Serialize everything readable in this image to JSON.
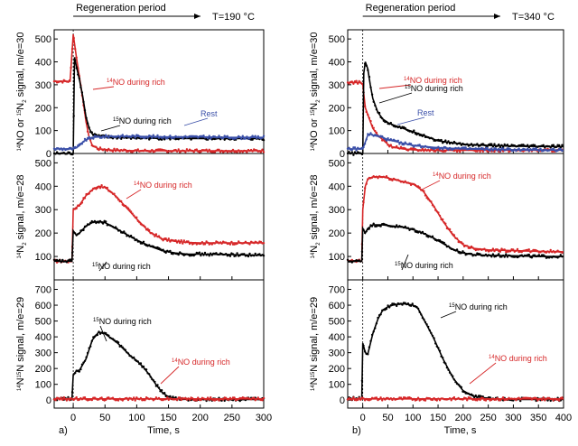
{
  "chart_data": [
    {
      "type": "line",
      "panel_label": "a)",
      "header": "Regeneration period",
      "temperature": "T=190 °C",
      "xlabel": "Time, s",
      "xlim": [
        -30,
        300
      ],
      "xticks": [
        0,
        50,
        100,
        150,
        200,
        250,
        300
      ],
      "subplots": [
        {
          "ylabel": "14NO or 15N2 signal, m/e=30",
          "ylim": [
            0,
            540
          ],
          "yticks": [
            0,
            100,
            200,
            300,
            400,
            500
          ],
          "series": [
            {
              "name": "14NO during rich",
              "color": "#d62728",
              "x": [
                -30,
                -5,
                0,
                2,
                5,
                10,
                15,
                20,
                25,
                30,
                40,
                60,
                100,
                150,
                200,
                250,
                300
              ],
              "y": [
                315,
                315,
                520,
                480,
                420,
                330,
                240,
                140,
                70,
                35,
                20,
                15,
                12,
                12,
                12,
                12,
                12
              ]
            },
            {
              "name": "15NO during rich",
              "color": "#000000",
              "x": [
                -30,
                0,
                2,
                5,
                10,
                15,
                20,
                25,
                30,
                40,
                60,
                100,
                150,
                200,
                250,
                300
              ],
              "y": [
                0,
                0,
                420,
                380,
                320,
                250,
                160,
                110,
                85,
                75,
                70,
                68,
                66,
                65,
                65,
                65
              ]
            },
            {
              "name": "Rest",
              "color": "#3a4fa8",
              "x": [
                -30,
                0,
                5,
                10,
                15,
                20,
                25,
                30,
                40,
                60,
                100,
                150,
                200,
                250,
                300
              ],
              "y": [
                20,
                20,
                25,
                35,
                50,
                60,
                65,
                70,
                72,
                75,
                75,
                72,
                72,
                70,
                70
              ]
            }
          ],
          "annotations": [
            {
              "text": "14NO during rich",
              "color": "#d62728"
            },
            {
              "text": "15NO during rich",
              "color": "#000000"
            },
            {
              "text": "Rest",
              "color": "#3a4fa8"
            }
          ]
        },
        {
          "ylabel": "14N2 signal, m/e=28",
          "ylim": [
            0,
            540
          ],
          "yticks": [
            100,
            200,
            300,
            400,
            500
          ],
          "series": [
            {
              "name": "14NO during rich",
              "color": "#d62728",
              "x": [
                -30,
                -2,
                0,
                5,
                10,
                20,
                30,
                40,
                50,
                60,
                70,
                80,
                100,
                120,
                140,
                160,
                180,
                200,
                250,
                300
              ],
              "y": [
                80,
                80,
                300,
                310,
                320,
                360,
                385,
                400,
                395,
                375,
                350,
                320,
                260,
                205,
                175,
                165,
                160,
                158,
                158,
                158
              ]
            },
            {
              "name": "15NO during rich",
              "color": "#000000",
              "x": [
                -30,
                -2,
                0,
                5,
                10,
                20,
                30,
                40,
                50,
                60,
                80,
                100,
                120,
                140,
                160,
                180,
                200,
                250,
                300
              ],
              "y": [
                80,
                80,
                210,
                190,
                200,
                230,
                245,
                250,
                245,
                230,
                200,
                170,
                145,
                125,
                115,
                110,
                110,
                108,
                105
              ]
            }
          ],
          "annotations": [
            {
              "text": "14NO during rich",
              "color": "#d62728"
            },
            {
              "text": "15NO during rich",
              "color": "#000000"
            }
          ]
        },
        {
          "ylabel": "14N15N signal, m/e=29",
          "ylim": [
            -50,
            760
          ],
          "yticks": [
            0,
            100,
            200,
            300,
            400,
            500,
            600,
            700
          ],
          "series": [
            {
              "name": "15NO during rich",
              "color": "#000000",
              "x": [
                -30,
                -2,
                0,
                5,
                10,
                20,
                30,
                40,
                50,
                60,
                70,
                80,
                90,
                100,
                110,
                120,
                130,
                140,
                150,
                160,
                180,
                200,
                250,
                300
              ],
              "y": [
                10,
                10,
                160,
                185,
                190,
                260,
                380,
                430,
                420,
                390,
                360,
                320,
                280,
                250,
                210,
                160,
                100,
                50,
                20,
                10,
                5,
                5,
                5,
                5
              ]
            },
            {
              "name": "14NO during rich",
              "color": "#d62728",
              "x": [
                -30,
                0,
                50,
                100,
                150,
                200,
                250,
                300
              ],
              "y": [
                8,
                8,
                8,
                8,
                8,
                8,
                8,
                8
              ]
            }
          ],
          "annotations": [
            {
              "text": "15NO during rich",
              "color": "#000000"
            },
            {
              "text": "14NO during rich",
              "color": "#d62728"
            }
          ]
        }
      ]
    },
    {
      "type": "line",
      "panel_label": "b)",
      "header": "Regeneration period",
      "temperature": "T=340 °C",
      "xlabel": "Time, s",
      "xlim": [
        -30,
        400
      ],
      "xticks": [
        0,
        50,
        100,
        150,
        200,
        250,
        300,
        350,
        400
      ],
      "subplots": [
        {
          "ylabel": "14NO or 15N2 signal, m/e=30",
          "ylim": [
            0,
            540
          ],
          "yticks": [
            0,
            100,
            200,
            300,
            400,
            500
          ],
          "series": [
            {
              "name": "14NO during rich",
              "color": "#d62728",
              "x": [
                -30,
                -5,
                0,
                2,
                5,
                10,
                15,
                20,
                30,
                40,
                50,
                60,
                80,
                100,
                150,
                200,
                300,
                400
              ],
              "y": [
                310,
                310,
                300,
                260,
                200,
                170,
                140,
                110,
                80,
                60,
                40,
                28,
                20,
                16,
                14,
                14,
                14,
                14
              ]
            },
            {
              "name": "15NO during rich",
              "color": "#000000",
              "x": [
                -30,
                0,
                2,
                5,
                10,
                15,
                20,
                30,
                40,
                50,
                60,
                80,
                100,
                120,
                150,
                200,
                250,
                300,
                400
              ],
              "y": [
                0,
                0,
                350,
                400,
                370,
                300,
                240,
                180,
                150,
                135,
                125,
                110,
                95,
                80,
                55,
                40,
                35,
                32,
                30
              ]
            },
            {
              "name": "Rest",
              "color": "#3a4fa8",
              "x": [
                -30,
                0,
                5,
                10,
                15,
                20,
                30,
                40,
                50,
                60,
                80,
                100,
                150,
                200,
                250,
                300,
                400
              ],
              "y": [
                20,
                20,
                50,
                80,
                85,
                80,
                75,
                70,
                60,
                55,
                45,
                35,
                25,
                20,
                18,
                16,
                15
              ]
            }
          ],
          "annotations": [
            {
              "text": "14NO during rich",
              "color": "#d62728"
            },
            {
              "text": "15NO during rich",
              "color": "#000000"
            },
            {
              "text": "Rest",
              "color": "#3a4fa8"
            }
          ]
        },
        {
          "ylabel": "14N2 signal, m/e=28",
          "ylim": [
            0,
            540
          ],
          "yticks": [
            100,
            200,
            300,
            400,
            500
          ],
          "series": [
            {
              "name": "14NO during rich",
              "color": "#d62728",
              "x": [
                -30,
                -2,
                0,
                5,
                10,
                20,
                40,
                60,
                80,
                100,
                120,
                140,
                160,
                180,
                200,
                220,
                250,
                300,
                350,
                400
              ],
              "y": [
                80,
                80,
                300,
                400,
                430,
                440,
                440,
                430,
                420,
                410,
                380,
                320,
                250,
                190,
                150,
                135,
                128,
                125,
                122,
                120
              ]
            },
            {
              "name": "15NO during rich",
              "color": "#000000",
              "x": [
                -30,
                -2,
                0,
                5,
                10,
                20,
                40,
                60,
                80,
                100,
                120,
                140,
                160,
                180,
                200,
                220,
                250,
                300,
                350,
                400
              ],
              "y": [
                80,
                80,
                220,
                200,
                220,
                235,
                235,
                230,
                225,
                215,
                200,
                180,
                155,
                130,
                115,
                108,
                105,
                103,
                100,
                100
              ]
            }
          ],
          "annotations": [
            {
              "text": "14NO during rich",
              "color": "#d62728"
            },
            {
              "text": "15NO during rich",
              "color": "#000000"
            }
          ]
        },
        {
          "ylabel": "14N15N signal, m/e=29",
          "ylim": [
            -50,
            760
          ],
          "yticks": [
            0,
            100,
            200,
            300,
            400,
            500,
            600,
            700
          ],
          "series": [
            {
              "name": "15NO during rich",
              "color": "#000000",
              "x": [
                -30,
                -2,
                0,
                5,
                10,
                20,
                30,
                40,
                50,
                60,
                80,
                100,
                110,
                120,
                140,
                160,
                180,
                200,
                220,
                250,
                300,
                350,
                400
              ],
              "y": [
                10,
                10,
                360,
                300,
                290,
                420,
                510,
                570,
                590,
                600,
                610,
                600,
                580,
                520,
                400,
                260,
                140,
                60,
                25,
                10,
                5,
                5,
                5
              ]
            },
            {
              "name": "14NO during rich",
              "color": "#d62728",
              "x": [
                -30,
                0,
                100,
                200,
                300,
                400
              ],
              "y": [
                8,
                8,
                8,
                8,
                8,
                8
              ]
            }
          ],
          "annotations": [
            {
              "text": "15NO during rich",
              "color": "#000000"
            },
            {
              "text": "14NO during rich",
              "color": "#d62728"
            }
          ]
        }
      ]
    }
  ]
}
